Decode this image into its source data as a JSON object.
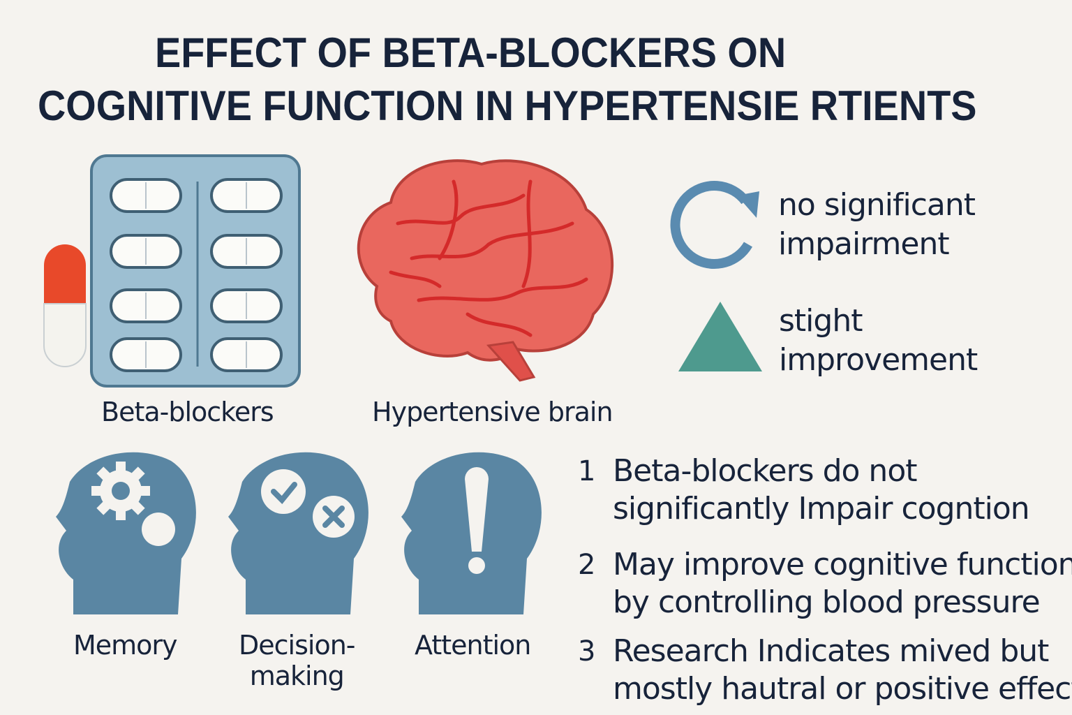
{
  "title": {
    "line1": "EFFECT OF BETA-BLOCKERS ON",
    "line2": "COGNITIVE FUNCTION IN HYPERTENSIE RTIENTS"
  },
  "illustrations": {
    "beta_blockers_label": "Beta-blockers",
    "brain_label": "Hypertensive brain"
  },
  "legend": [
    {
      "icon": "circular-arrow-icon",
      "line1": "no significant",
      "line2": "impairment",
      "color": "#5a8bb0"
    },
    {
      "icon": "triangle-icon",
      "line1": "stight",
      "line2": "improvement",
      "color": "#4e9a8e"
    }
  ],
  "heads": [
    {
      "icon": "head-gear-icon",
      "label": "Memory"
    },
    {
      "icon": "head-check-cross-icon",
      "label_line1": "Decision-",
      "label_line2": "making"
    },
    {
      "icon": "head-exclamation-icon",
      "label": "Attention"
    }
  ],
  "points": [
    {
      "num": "1",
      "line1": "Beta-blockers do not",
      "line2": "significantly Impair cogntion"
    },
    {
      "num": "2",
      "line1": "May improve cognitive function",
      "line2": "by controlling blood pressure"
    },
    {
      "num": "3",
      "line1": "Research Indicates mived but",
      "line2": "mostly hautral or positive effects"
    }
  ],
  "colors": {
    "background": "#f5f3ef",
    "text": "#17233a",
    "head_blue": "#5a86a3",
    "blister": "#9dbfd2",
    "brain": "#e9675e",
    "brain_vessels": "#d42a2a",
    "capsule_red": "#e8492a"
  }
}
